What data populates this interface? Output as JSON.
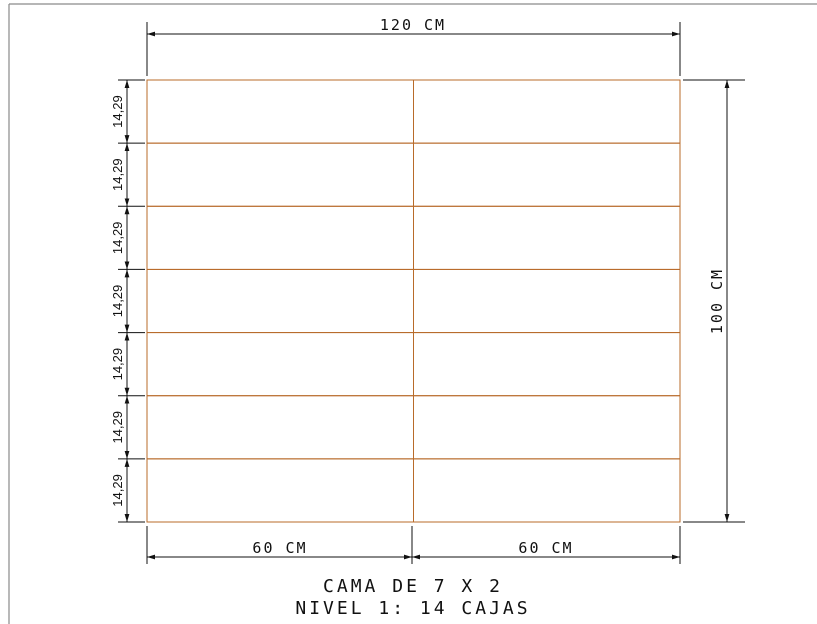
{
  "colors": {
    "box_stroke": "#b86b2a",
    "dim_stroke": "#111111",
    "border": "#8a8a8a"
  },
  "layout_grid": {
    "rows": 7,
    "cols": 2
  },
  "dimensions": {
    "width_label": "120 CM",
    "height_label": "100 CM",
    "col_labels": [
      "60 CM",
      "60 CM"
    ],
    "row_labels": [
      "14,29",
      "14,29",
      "14,29",
      "14,29",
      "14,29",
      "14,29",
      "14,29"
    ]
  },
  "caption": {
    "line1": "CAMA DE 7 X 2",
    "line2": "NIVEL 1: 14 CAJAS"
  }
}
